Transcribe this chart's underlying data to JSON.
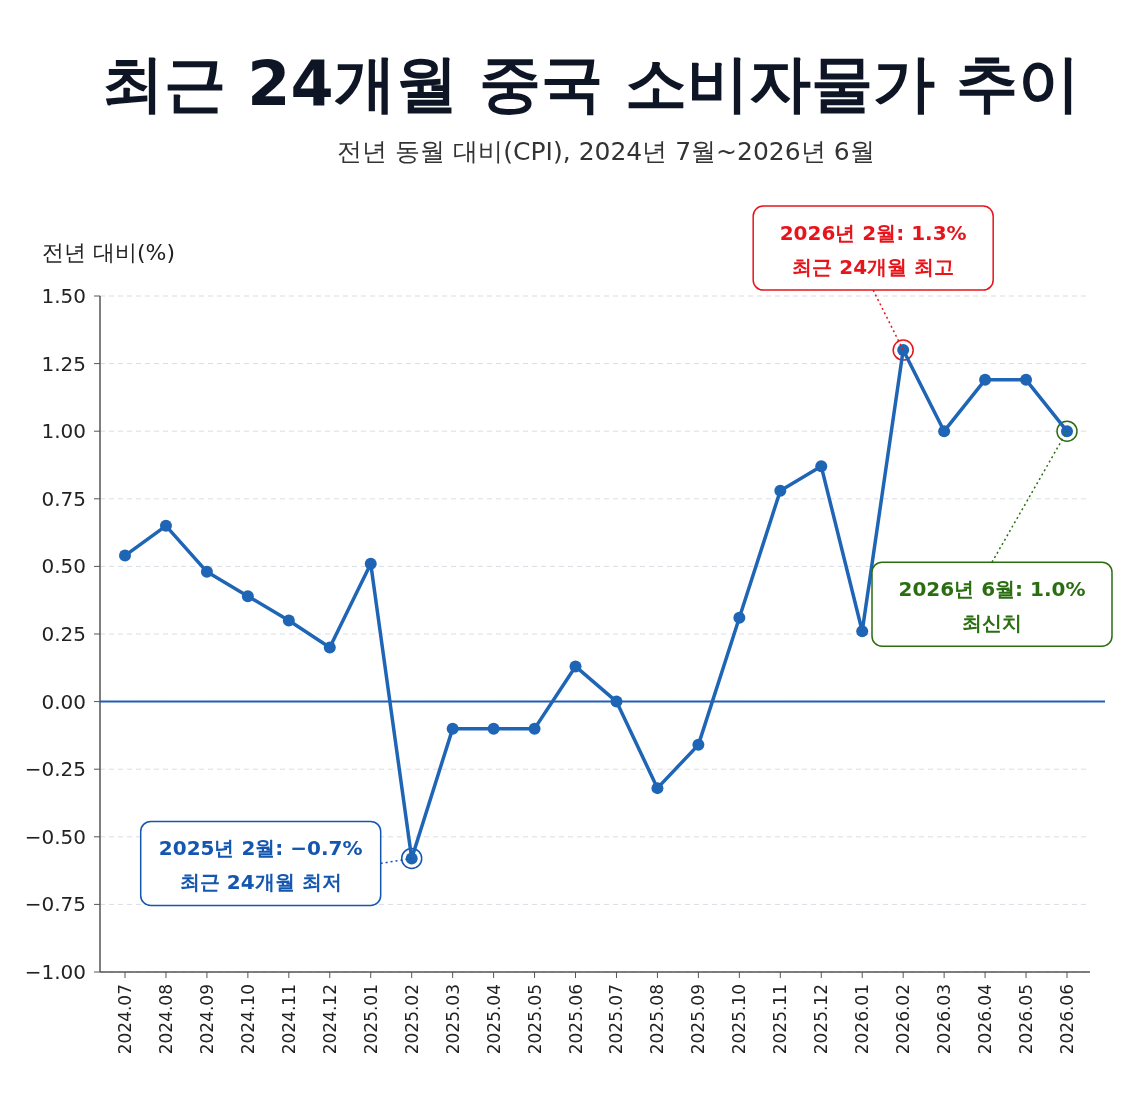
{
  "chart_data": {
    "type": "line",
    "title": "최근 24개월 중국 소비자물가 추이",
    "subtitle": "전년 동월 대비(CPI), 2024년 7월~2026년 6월",
    "ylabel": "전년 대비(%)",
    "categories": [
      "2024.07",
      "2024.08",
      "2024.09",
      "2024.10",
      "2024.11",
      "2024.12",
      "2025.01",
      "2025.02",
      "2025.03",
      "2025.04",
      "2025.05",
      "2025.06",
      "2025.07",
      "2025.08",
      "2025.09",
      "2025.10",
      "2025.11",
      "2025.12",
      "2026.01",
      "2026.02",
      "2026.03",
      "2026.04",
      "2026.05",
      "2026.06"
    ],
    "series": [
      {
        "color": "#1f65b5",
        "values": [
          0.54,
          0.65,
          0.48,
          0.39,
          0.3,
          0.2,
          0.51,
          -0.58,
          -0.1,
          -0.1,
          -0.1,
          0.13,
          0.0,
          -0.32,
          -0.16,
          0.31,
          0.78,
          0.87,
          0.26,
          1.3,
          1.0,
          1.19,
          1.19,
          1.0
        ]
      }
    ],
    "ylim": [
      -1.0,
      1.5
    ],
    "yticks": [
      {
        "value": -1.0,
        "label": "−1.00"
      },
      {
        "value": -0.75,
        "label": "−0.75"
      },
      {
        "value": -0.5,
        "label": "−0.50"
      },
      {
        "value": -0.25,
        "label": "−0.25"
      },
      {
        "value": 0,
        "label": "0.00"
      },
      {
        "value": 0.25,
        "label": "0.25"
      },
      {
        "value": 0.5,
        "label": "0.50"
      },
      {
        "value": 0.75,
        "label": "0.75"
      },
      {
        "value": 1.0,
        "label": "1.00"
      },
      {
        "value": 1.25,
        "label": "1.25"
      },
      {
        "value": 1.5,
        "label": "1.50"
      }
    ],
    "grid": "y",
    "marker": "circle",
    "line_style": "solid",
    "ref_lines": [
      {
        "axis": "y",
        "value": 0,
        "color": "#1f5fb4",
        "line_style": "solid"
      }
    ],
    "annotations": [
      {
        "text": "2026년 2월: 1.3%\n최근 24개월 최고",
        "x": "2026.02",
        "y": 1.3
      },
      {
        "text": "2026년 6월: 1.0%\n최신치",
        "x": "2026.06",
        "y": 1.0
      },
      {
        "text": "2025년 2월: −0.7%\n최근 24개월 최저",
        "x": "2025.02",
        "y": -0.58
      }
    ]
  }
}
